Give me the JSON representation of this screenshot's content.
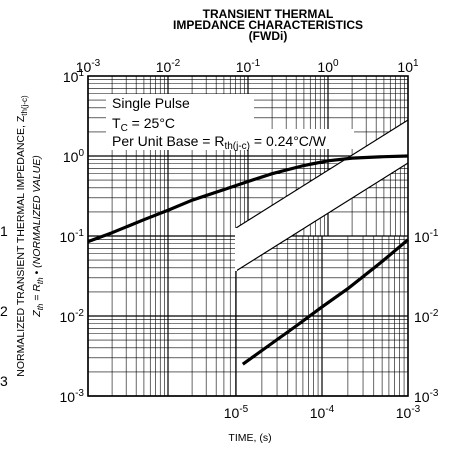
{
  "chart_data": {
    "type": "line",
    "title": [
      "TRANSIENT THERMAL",
      "IMPEDANCE CHARACTERISTICS",
      "(FWDi)"
    ],
    "xlabel": "TIME, (s)",
    "ylabel": {
      "line1": [
        "NORMALIZED TRANSIENT THERMAL IMPEDANCE, Z",
        "th(j-c)"
      ],
      "line2": [
        "Z",
        "th",
        " = R",
        "th",
        " • (NORMALIZED VALUE)"
      ]
    },
    "annotations": {
      "line1": "Single Pulse",
      "line2": [
        "T",
        "C",
        " = 25°C"
      ],
      "line3": [
        "Per Unit Base = R",
        "th(j-c)",
        " = 0.24°C/W"
      ]
    },
    "upper_plot": {
      "xscale": "log",
      "yscale": "log",
      "xlim": [
        0.001,
        10
      ],
      "ylim": [
        0.1,
        10
      ],
      "x_tick_labels": [
        [
          "10",
          "-3"
        ],
        [
          "10",
          "-2"
        ],
        [
          "10",
          "-1"
        ],
        [
          "10",
          "0"
        ],
        [
          "10",
          "1"
        ]
      ],
      "y_tick_labels": [
        [
          "10",
          "1"
        ],
        [
          "10",
          "0"
        ],
        [
          "10",
          "-1"
        ]
      ],
      "series": [
        {
          "x": [
            0.001,
            0.002,
            0.005,
            0.01,
            0.02,
            0.05,
            0.1,
            0.2,
            0.5,
            1,
            2,
            5,
            10
          ],
          "y": [
            0.085,
            0.11,
            0.16,
            0.21,
            0.28,
            0.38,
            0.48,
            0.6,
            0.76,
            0.87,
            0.94,
            0.98,
            1.0
          ]
        }
      ]
    },
    "lower_plot": {
      "xscale": "log",
      "yscale": "log",
      "xlim": [
        1e-05,
        0.001
      ],
      "ylim": [
        0.001,
        0.1
      ],
      "x_tick_labels": [
        [
          "10",
          "-5"
        ],
        [
          "10",
          "-4"
        ],
        [
          "10",
          "-3"
        ]
      ],
      "y_tick_labels": [
        [
          "10",
          "-1"
        ],
        [
          "10",
          "-2"
        ],
        [
          "10",
          "-3"
        ]
      ],
      "series": [
        {
          "x": [
            1.2e-05,
            2e-05,
            5e-05,
            0.0001,
            0.0002,
            0.0005,
            0.001
          ],
          "y": [
            0.0025,
            0.0037,
            0.0075,
            0.013,
            0.022,
            0.048,
            0.09
          ]
        }
      ]
    },
    "left_axis_labels": [
      [
        "10",
        "1"
      ],
      [
        "10",
        "0"
      ],
      [
        "10",
        "-1"
      ],
      [
        "10",
        "-2"
      ],
      [
        "10",
        "-3"
      ]
    ],
    "left_edge_fragments": [
      "1",
      "2",
      "3"
    ],
    "grid": true
  }
}
